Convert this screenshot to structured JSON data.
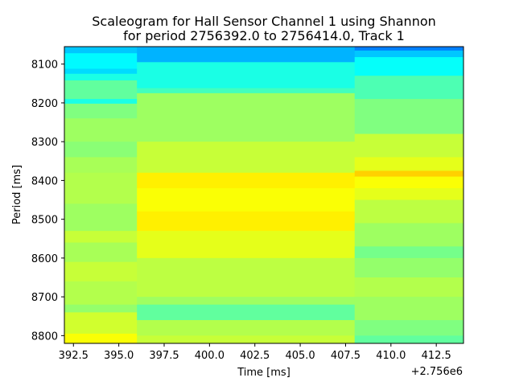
{
  "chart_data": {
    "type": "heatmap",
    "title_lines": [
      "Scaleogram for Hall Sensor Channel 1 using Shannon",
      "for period 2756392.0 to 2756414.0, Track 1"
    ],
    "xlabel": "Time [ms]",
    "ylabel": "Period [ms]",
    "x_offset_label": "+2.756e6",
    "xlim": [
      392,
      414
    ],
    "ylim": [
      8820,
      8055
    ],
    "x_ticks": [
      392.5,
      395.0,
      397.5,
      400.0,
      402.5,
      405.0,
      407.5,
      410.0,
      412.5
    ],
    "x_tick_labels": [
      "392.5",
      "395.0",
      "397.5",
      "400.0",
      "402.5",
      "405.0",
      "407.5",
      "410.0",
      "412.5"
    ],
    "y_ticks": [
      8100,
      8200,
      8300,
      8400,
      8500,
      8600,
      8700,
      8800
    ],
    "y_tick_labels": [
      "8100",
      "8200",
      "8300",
      "8400",
      "8500",
      "8600",
      "8700",
      "8800"
    ],
    "colormap": "jet",
    "column_edges": [
      392,
      396,
      408,
      414
    ],
    "columns": [
      {
        "bands": [
          {
            "from": 8055,
            "to": 8072,
            "value": 0.32
          },
          {
            "from": 8072,
            "to": 8112,
            "value": 0.37
          },
          {
            "from": 8112,
            "to": 8125,
            "value": 0.34
          },
          {
            "from": 8125,
            "to": 8142,
            "value": 0.4
          },
          {
            "from": 8142,
            "to": 8190,
            "value": 0.47
          },
          {
            "from": 8190,
            "to": 8202,
            "value": 0.4
          },
          {
            "from": 8202,
            "to": 8240,
            "value": 0.5
          },
          {
            "from": 8240,
            "to": 8300,
            "value": 0.53
          },
          {
            "from": 8300,
            "to": 8340,
            "value": 0.51
          },
          {
            "from": 8340,
            "to": 8380,
            "value": 0.54
          },
          {
            "from": 8380,
            "to": 8460,
            "value": 0.55
          },
          {
            "from": 8460,
            "to": 8530,
            "value": 0.53
          },
          {
            "from": 8530,
            "to": 8560,
            "value": 0.57
          },
          {
            "from": 8560,
            "to": 8610,
            "value": 0.54
          },
          {
            "from": 8610,
            "to": 8660,
            "value": 0.57
          },
          {
            "from": 8660,
            "to": 8720,
            "value": 0.55
          },
          {
            "from": 8720,
            "to": 8740,
            "value": 0.52
          },
          {
            "from": 8740,
            "to": 8795,
            "value": 0.58
          },
          {
            "from": 8795,
            "to": 8820,
            "value": 0.62
          }
        ]
      },
      {
        "bands": [
          {
            "from": 8055,
            "to": 8095,
            "value": 0.3
          },
          {
            "from": 8095,
            "to": 8162,
            "value": 0.4
          },
          {
            "from": 8162,
            "to": 8175,
            "value": 0.44
          },
          {
            "from": 8175,
            "to": 8300,
            "value": 0.53
          },
          {
            "from": 8300,
            "to": 8380,
            "value": 0.57
          },
          {
            "from": 8380,
            "to": 8420,
            "value": 0.64
          },
          {
            "from": 8420,
            "to": 8480,
            "value": 0.62
          },
          {
            "from": 8480,
            "to": 8530,
            "value": 0.64
          },
          {
            "from": 8530,
            "to": 8600,
            "value": 0.6
          },
          {
            "from": 8600,
            "to": 8700,
            "value": 0.56
          },
          {
            "from": 8700,
            "to": 8720,
            "value": 0.53
          },
          {
            "from": 8720,
            "to": 8760,
            "value": 0.47
          },
          {
            "from": 8760,
            "to": 8800,
            "value": 0.55
          },
          {
            "from": 8800,
            "to": 8820,
            "value": 0.57
          }
        ]
      },
      {
        "bands": [
          {
            "from": 8055,
            "to": 8065,
            "value": 0.25
          },
          {
            "from": 8065,
            "to": 8082,
            "value": 0.32
          },
          {
            "from": 8082,
            "to": 8130,
            "value": 0.38
          },
          {
            "from": 8130,
            "to": 8190,
            "value": 0.45
          },
          {
            "from": 8190,
            "to": 8280,
            "value": 0.5
          },
          {
            "from": 8280,
            "to": 8340,
            "value": 0.57
          },
          {
            "from": 8340,
            "to": 8375,
            "value": 0.6
          },
          {
            "from": 8375,
            "to": 8390,
            "value": 0.67
          },
          {
            "from": 8390,
            "to": 8420,
            "value": 0.62
          },
          {
            "from": 8420,
            "to": 8450,
            "value": 0.6
          },
          {
            "from": 8450,
            "to": 8510,
            "value": 0.56
          },
          {
            "from": 8510,
            "to": 8570,
            "value": 0.53
          },
          {
            "from": 8570,
            "to": 8600,
            "value": 0.49
          },
          {
            "from": 8600,
            "to": 8650,
            "value": 0.52
          },
          {
            "from": 8650,
            "to": 8700,
            "value": 0.55
          },
          {
            "from": 8700,
            "to": 8760,
            "value": 0.53
          },
          {
            "from": 8760,
            "to": 8800,
            "value": 0.5
          },
          {
            "from": 8800,
            "to": 8820,
            "value": 0.47
          }
        ]
      }
    ],
    "grid": false,
    "legend": "none"
  }
}
